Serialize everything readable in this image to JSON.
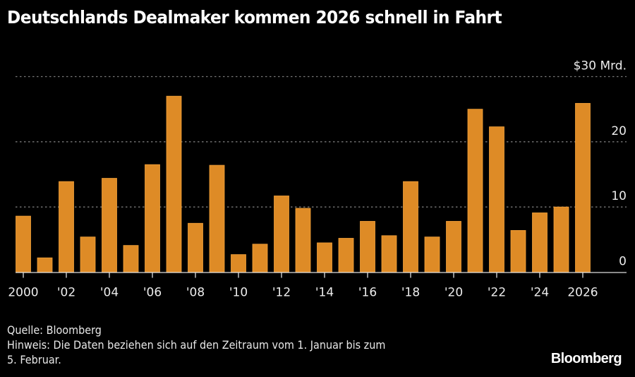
{
  "header": {
    "title": "Deutschlands Dealmaker kommen 2026 schnell in Fahrt"
  },
  "footer": {
    "source": "Quelle: Bloomberg",
    "note_line1": "Hinweis: Die Daten beziehen sich auf den Zeitraum vom 1. Januar bis zum",
    "note_line2": "5. Februar.",
    "brand": "Bloomberg"
  },
  "colors": {
    "background": "#000000",
    "bar": "#DE8B26",
    "bar_edge": "#F0A03A",
    "grid": "#777777",
    "axis": "#DDDDDD",
    "text": "#FFFFFF"
  },
  "chart_data": {
    "type": "bar",
    "title": "Deutschlands Dealmaker kommen 2026 schnell in Fahrt",
    "xlabel": "",
    "ylabel": "",
    "unit_label": "$30 Mrd.",
    "categories": [
      "2000",
      "2001",
      "2002",
      "2003",
      "2004",
      "2005",
      "2006",
      "2007",
      "2008",
      "2009",
      "2010",
      "2011",
      "2012",
      "2013",
      "2014",
      "2015",
      "2016",
      "2017",
      "2018",
      "2019",
      "2020",
      "2021",
      "2022",
      "2023",
      "2024",
      "2025",
      "2026"
    ],
    "values": [
      8.6,
      2.2,
      13.9,
      5.4,
      14.4,
      4.1,
      16.5,
      27.0,
      7.5,
      16.4,
      2.7,
      4.3,
      11.7,
      9.8,
      4.5,
      5.2,
      7.8,
      5.6,
      13.9,
      5.4,
      7.8,
      25.0,
      22.3,
      6.4,
      9.1,
      10.0,
      25.9
    ],
    "x_tick_labels": [
      {
        "category": "2000",
        "label": "2000"
      },
      {
        "category": "2002",
        "label": "'02"
      },
      {
        "category": "2004",
        "label": "'04"
      },
      {
        "category": "2006",
        "label": "'06"
      },
      {
        "category": "2008",
        "label": "'08"
      },
      {
        "category": "2010",
        "label": "'10"
      },
      {
        "category": "2012",
        "label": "'12"
      },
      {
        "category": "2014",
        "label": "'14"
      },
      {
        "category": "2016",
        "label": "'16"
      },
      {
        "category": "2018",
        "label": "'18"
      },
      {
        "category": "2020",
        "label": "'20"
      },
      {
        "category": "2022",
        "label": "'22"
      },
      {
        "category": "2024",
        "label": "'24"
      },
      {
        "category": "2026",
        "label": "2026"
      }
    ],
    "y_ticks": [
      {
        "value": 0,
        "label": "0"
      },
      {
        "value": 10,
        "label": "10"
      },
      {
        "value": 20,
        "label": "20"
      },
      {
        "value": 30,
        "label": "$30 Mrd."
      }
    ],
    "ylim": [
      0,
      30
    ],
    "y_axis_side": "right",
    "grid": true,
    "grid_style": "dotted",
    "legend": "none"
  }
}
